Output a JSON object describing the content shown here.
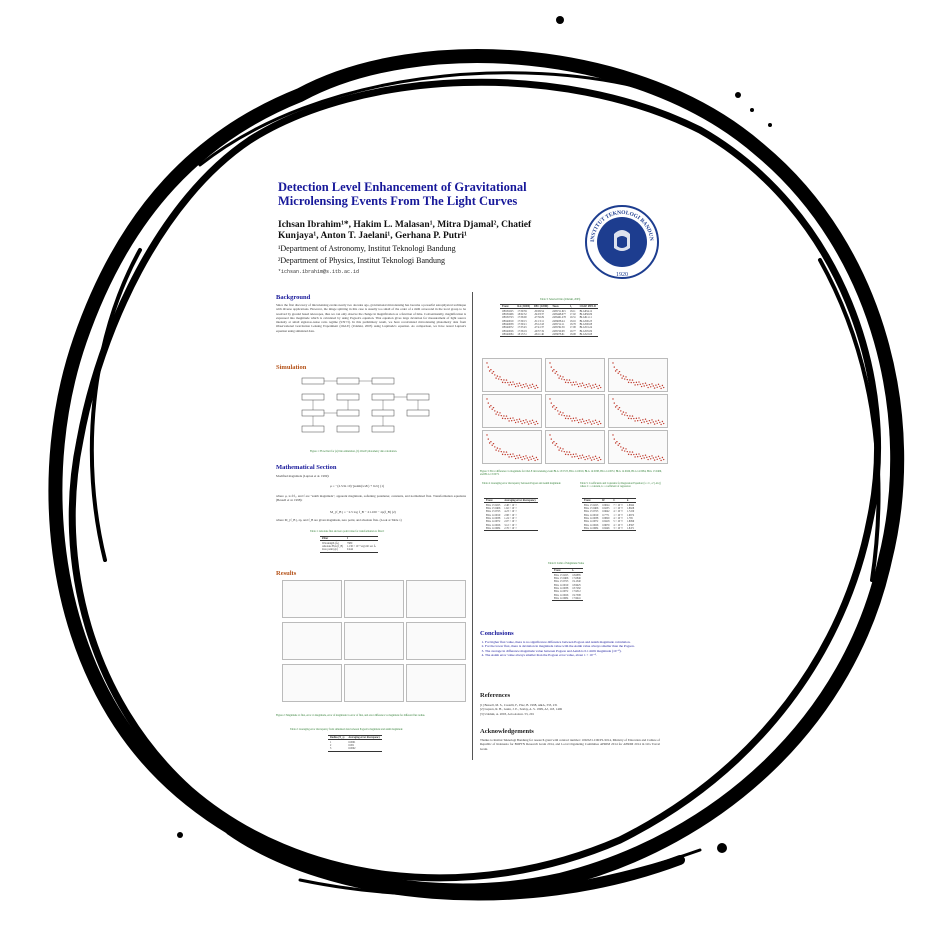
{
  "poster": {
    "title_line1": "Detection Level Enhancement of Gravitational",
    "title_line2": "Microlensing Events From The Light Curves",
    "authors_line1": "Ichsan Ibrahim¹*, Hakim L. Malasan¹, Mitra Djamal², Chatief",
    "authors_line2": "Kunjaya¹, Anton T. Jaelani¹, Gerhana P. Putri¹",
    "affiliation1": "¹Department of Astronomy, Institut Teknologi Bandung",
    "affiliation2": "²Department of Physics, Institut Teknologi Bandung",
    "email": "*ichsan.ibrahim@s.itb.ac.id",
    "logo_text": "INSTITUT TEKNOLOGI BANDUNG",
    "logo_year": "1920"
  },
  "left": {
    "background_heading": "Background",
    "background_text": "Since the first discovery of microlensing events nearly two decades ago, gravitational microlensing has become a powerful astrophysical technique with diverse applications. However, the image splitting in this case is usually too small of the order of a milli arcsecond in the local group to be resolved by ground based telescopes, thus we can only observe the change in magnification as a function of time. Conventionally, magnification is expressed into magnitude which is calculated by using Pogson's equation. That equation gives large deviation for measurement of light source intensity at small signal-to-noise ratio regime (S/N<3). In this preliminary result, we have recalculated microlensing photometry data from Observational Gravitation Lensing Experiment (OGLE) (Udalski, 2003) using Luptitude's equation. As comparison, we have tested Lupton's equation using simulated data.",
    "simulation_heading": "Simulation",
    "figure1_caption": "Figure 1: Flowchart for (a) Data simulation, (b) OGLE photometry data calculation.",
    "math_heading": "Mathematical Section",
    "math_text1": "Modified magnitude (Lupton et al. 1999):",
    "eq1": "μ = −(2.5/ln 10)·[asinh(x/2b) + ln b]      (1)",
    "math_text2": "where μ, x=f/f₀, and f are \"asinh magnitude\", apparent magnitude, softening parameter, constants, and normalized flux. Transformation equations (Bessell et al. 1998):",
    "eq2": "M_{f_B} = −2.5 log f_B − 21.100 − zp(f_B)      (2)",
    "math_text3": "where M_{f_B}, zp, and f_B are given magnitude, zero point, and absolute flux. (Look at Table 1)",
    "table1_caption": "Table 1: Absolute flux and zero point value for transformation to filter I",
    "results_heading": "Results",
    "figure2_caption": "Figure 2: Magnitude vs flux, error vs magnitude, error of magnitude vs error of flux, and error difference vs magnitude for different flux radius.",
    "table2_caption": "Table 2: Averaging error discrepancy from simulated data between Pogson's magnitude and asinh magnitude"
  },
  "table1": {
    "headers": [
      "Filter",
      "I"
    ],
    "rows": [
      [
        "Wavelength (Å)",
        "7980"
      ],
      [
        "Absolute Flux (f_B)",
        "1.130 × 10⁻⁹ erg/cm² sec Å"
      ],
      [
        "Zero point (zp)",
        "0.444"
      ]
    ]
  },
  "table2": {
    "headers": [
      "Radius (N_s)",
      "Averaging error discrepancy"
    ],
    "rows": [
      [
        "1",
        "0.0001"
      ],
      [
        "2",
        "0.001"
      ],
      [
        "3",
        "0.0002"
      ]
    ]
  },
  "right": {
    "table3_caption": "Table 3: Selected Data (Udalski, 2003)",
    "figure3_caption": "Figure 3: Error difference vs magnitude for OGLE microlensing event BLG 13 0723, BLG 14 0019, BLG 14 0038, BLG 14 0072, BLG 14 0026, BLG 14 0084, BLG 13 0409, and BLG 13 0073.",
    "table4_caption": "Table 4: Averaging error discrepancy between Pogson and Asinh magnitude",
    "table5_caption": "Table 5: Coefficients and Constants for Regression Equation (x = C₁ e^{-kx}) where C = constant, k = coefficient of regression",
    "table6_caption": "Table 6: Limit of Magnitude Value",
    "conclusions_heading": "Conclusions",
    "conclusions": [
      "For higher flux value, there is no significance difference between Pogson and Asinh magnitude calculation.",
      "For the lower flux, there is deviation in magnitude value with the Asinh value always smaller than the Pogson.",
      "The average in difference magnitude value between Pogson and Asinh is 0.1 milli magnitude (10⁻⁴).",
      "The Asinh error value always smaller than the Pogson error value, about 1 × 10⁻⁴."
    ],
    "references_heading": "References",
    "references": [
      "[1] Bessell, M. S., Castelli, F., Plez, B. 1998, A&A, 333, 231",
      "[2] Lupton, R. H., Gunn, J. E., Szalay, A. S. 1999, AJ, 118, 1406",
      "[3] Udalski, A. 2003, Acta Astron. 53, 291"
    ],
    "ack_heading": "Acknowledgements",
    "ack_text": "Thanks to Institut Teknologi Bandung for research grant with contract number: 1002b/I1.C06/PL/2014, Ministry of Education and Culture of Republic of Indonesia for BOPTN Research Grant 2014, and Local Organizing Committee APRIM 2014 for APRIM 2014 in LIG Travel Grant."
  },
  "table3": {
    "headers": [
      "Event",
      "RA (J2000)",
      "DEC (J2000)",
      "Tmax",
      "I₀",
      "OGLE FIELD"
    ],
    "rows": [
      [
        "OB130225",
        "17:59:39",
        "-30:09:54",
        "2456711.615",
        "18.11",
        "BLG634.12"
      ],
      [
        "OB130406",
        "18:02:32",
        "-34:03:37",
        "2456448.077",
        "17.02",
        "BLG656.09"
      ],
      [
        "OB130723",
        "17:56:00",
        "-27:56:29",
        "2456461.278",
        "19.31",
        "BLG611.11"
      ],
      [
        "OB140019",
        "17:59:15",
        "-31:13:11",
        "2456658.24",
        "18.16",
        "BLG500.23"
      ],
      [
        "OB140038",
        "17:59:21",
        "-33:12:43",
        "2456712.11",
        "18.78",
        "BLG500.08"
      ],
      [
        "OB140072",
        "17:55:45",
        "-27:41:37",
        "2456762.59",
        "17.08",
        "BLG501.24"
      ],
      [
        "OB140026",
        "17:56:19",
        "-29:37:19",
        "2456729.08",
        "19.77",
        "BLG505.09"
      ],
      [
        "OB140084",
        "18:13:51",
        "-26:11:46",
        "2456678.61",
        "18.08",
        "BLG522.08"
      ]
    ]
  },
  "table4": {
    "headers": [
      "Event",
      "Averaging error discrepancy"
    ],
    "rows": [
      [
        "BLG 13 0225",
        "2.48 × 10⁻⁴"
      ],
      [
        "BLG 13 0406",
        "1.62 × 10⁻⁴"
      ],
      [
        "BLG 13 0723",
        "4.23 × 10⁻⁴"
      ],
      [
        "BLG 14 0019",
        "2.98 × 10⁻⁴"
      ],
      [
        "BLG 14 0038",
        "1.24 × 10⁻⁴"
      ],
      [
        "BLG 14 0072",
        "2.07 × 10⁻⁴"
      ],
      [
        "BLG 14 0026",
        "3.12 × 10⁻⁴"
      ],
      [
        "BLG 14 0084",
        "2.76 × 10⁻⁴"
      ]
    ]
  },
  "table5": {
    "headers": [
      "Event",
      "R²",
      "C",
      "k"
    ],
    "rows": [
      [
        "BLG 13 0225",
        "0.8024",
        "7 × 10⁻¹³",
        "1.8842"
      ],
      [
        "BLG 13 0406",
        "0.9235",
        "1 × 10⁻¹²",
        "1.8628"
      ],
      [
        "BLG 13 0723",
        "0.9642",
        "4 × 10⁻¹³",
        "1.7220"
      ],
      [
        "BLG 14 0019",
        "0.7771",
        "1 × 10⁻¹²",
        "1.9672"
      ],
      [
        "BLG 14 0038",
        "0.8829",
        "4 × 10⁻¹³",
        "1.765"
      ],
      [
        "BLG 14 0072",
        "0.8418",
        "5 × 10⁻¹³",
        "1.8099"
      ],
      [
        "BLG 14 0026",
        "0.8679",
        "4 × 10⁻¹³",
        "1.8597"
      ],
      [
        "BLG 14 0084",
        "0.8246",
        "3 × 10⁻¹³",
        "1.8471"
      ]
    ]
  },
  "table6": {
    "headers": [
      "Event",
      "Iₗ"
    ],
    "rows": [
      [
        "BLG 13 0225",
        "18.6885"
      ],
      [
        "BLG 13 0406",
        "17.0846"
      ],
      [
        "BLG 13 0723",
        "19.1340"
      ],
      [
        "BLG 14 0019",
        "18.9925"
      ],
      [
        "BLG 14 0038",
        "18.7282"
      ],
      [
        "BLG 14 0072",
        "17.9312"
      ],
      [
        "BLG 14 0026",
        "19.7308"
      ],
      [
        "BLG 14 0084",
        "17.9941"
      ]
    ]
  }
}
